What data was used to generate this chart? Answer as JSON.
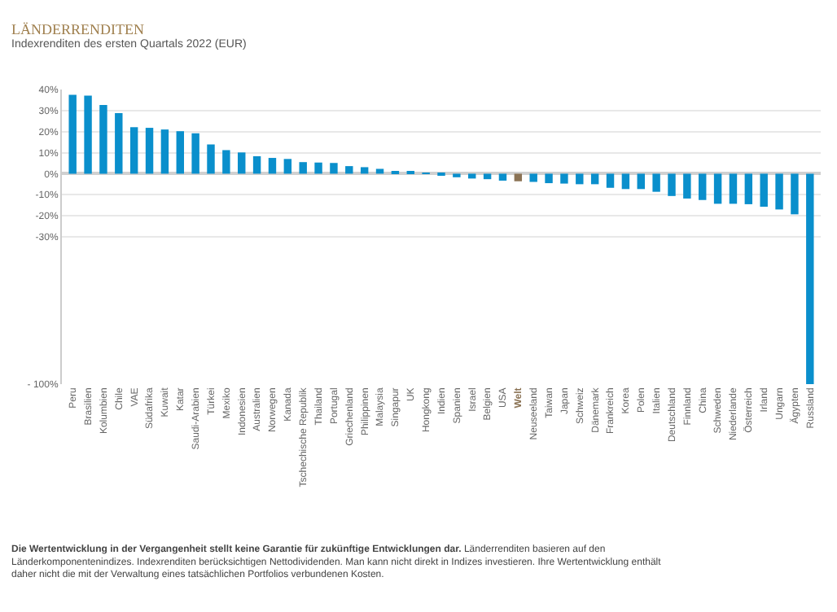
{
  "chart_data": {
    "type": "bar",
    "title": "LÄNDERRENDITEN",
    "subtitle": "Indexrenditen des ersten Quartals 2022 (EUR)",
    "categories": [
      "Peru",
      "Brasilien",
      "Kolumbien",
      "Chile",
      "VAE",
      "Südafrika",
      "Kuwait",
      "Katar",
      "Saudi-Arabien",
      "Türkei",
      "Mexiko",
      "Indonesien",
      "Australien",
      "Norwegen",
      "Kanada",
      "Tschechische Republik",
      "Thailand",
      "Portugal",
      "Griechenland",
      "Philippinen",
      "Malaysia",
      "Singapur",
      "UK",
      "Hongkong",
      "Indien",
      "Spanien",
      "Israel",
      "Belgien",
      "USA",
      "Welt",
      "Neuseeland",
      "Taiwan",
      "Japan",
      "Schweiz",
      "Dänemark",
      "Frankreich",
      "Korea",
      "Polen",
      "Italien",
      "Deutschland",
      "Finnland",
      "China",
      "Schweden",
      "Niederlande",
      "Österreich",
      "Irland",
      "Ungarn",
      "Ägypten",
      "Russland"
    ],
    "values": [
      37.5,
      37.1,
      32.7,
      28.8,
      22.1,
      21.8,
      21.0,
      20.2,
      19.2,
      13.9,
      11.2,
      10.1,
      8.3,
      7.5,
      7.0,
      5.5,
      5.3,
      5.1,
      3.6,
      3.1,
      2.3,
      1.1,
      0.8,
      -0.2,
      -0.8,
      -1.7,
      -2.3,
      -2.6,
      -3.3,
      -3.6,
      -3.9,
      -4.5,
      -4.7,
      -5.0,
      -5.0,
      -6.7,
      -7.3,
      -7.3,
      -8.6,
      -10.6,
      -11.8,
      -12.5,
      -14.3,
      -14.3,
      -14.5,
      -15.7,
      -17.0,
      -19.3,
      -100
    ],
    "colors": [
      "#0a8fcc",
      "#0a8fcc",
      "#0a8fcc",
      "#0a8fcc",
      "#0a8fcc",
      "#0a8fcc",
      "#0a8fcc",
      "#0a8fcc",
      "#0a8fcc",
      "#0a8fcc",
      "#0a8fcc",
      "#0a8fcc",
      "#0a8fcc",
      "#0a8fcc",
      "#0a8fcc",
      "#0a8fcc",
      "#0a8fcc",
      "#0a8fcc",
      "#0a8fcc",
      "#0a8fcc",
      "#0a8fcc",
      "#0a8fcc",
      "#0a8fcc",
      "#0a8fcc",
      "#0a8fcc",
      "#0a8fcc",
      "#0a8fcc",
      "#0a8fcc",
      "#0a8fcc",
      "#8b7355",
      "#0a8fcc",
      "#0a8fcc",
      "#0a8fcc",
      "#0a8fcc",
      "#0a8fcc",
      "#0a8fcc",
      "#0a8fcc",
      "#0a8fcc",
      "#0a8fcc",
      "#0a8fcc",
      "#0a8fcc",
      "#0a8fcc",
      "#0a8fcc",
      "#0a8fcc",
      "#0a8fcc",
      "#0a8fcc",
      "#0a8fcc",
      "#0a8fcc",
      "#0a8fcc"
    ],
    "ylim": [
      -100,
      40
    ],
    "yticks": [
      {
        "value": 40,
        "label": "40%"
      },
      {
        "value": 30,
        "label": "30%"
      },
      {
        "value": 20,
        "label": "20%"
      },
      {
        "value": 10,
        "label": "10%"
      },
      {
        "value": 0,
        "label": "0%"
      },
      {
        "value": -10,
        "label": "-10%"
      },
      {
        "value": -20,
        "label": "-20%"
      },
      {
        "value": -30,
        "label": "-30%"
      },
      {
        "value": -100,
        "label": "- 100%"
      }
    ],
    "grid": "y",
    "annotations": [
      "Die Wertentwicklung in der Vergangenheit stellt keine Garantie für zukünftige Entwicklungen dar.",
      "Länderrenditen basieren auf den Länderkomponentenindizes. Indexrenditen berücksichtigen Nettodividenden. Man kann nicht direkt in Indizes investieren. Ihre Wertentwicklung enthält daher nicht die mit der Verwaltung eines tatsächlichen Portfolios verbundenen Kosten."
    ]
  }
}
